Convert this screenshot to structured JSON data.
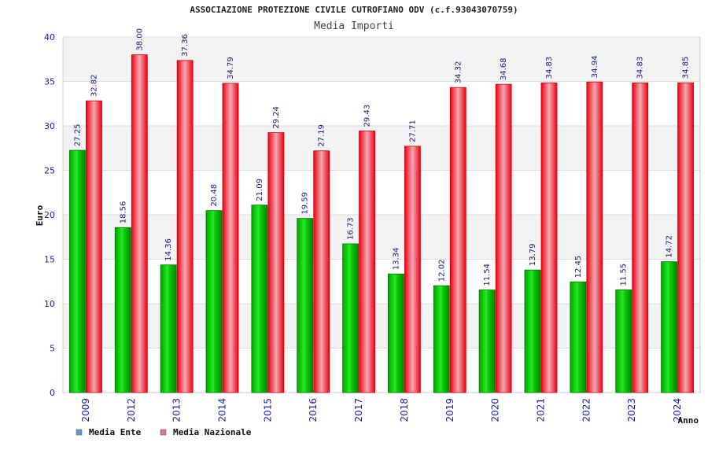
{
  "chart_data": {
    "type": "bar",
    "title": "ASSOCIAZIONE PROTEZIONE CIVILE CUTROFIANO ODV (c.f.93043070759)",
    "subtitle": "Media Importi",
    "xlabel": "Anno",
    "ylabel": "Euro",
    "ylim": [
      0,
      40
    ],
    "yticks": [
      0,
      5,
      10,
      15,
      20,
      25,
      30,
      35,
      40
    ],
    "grid": true,
    "legend_position": "bottom-left",
    "categories": [
      "2009",
      "2012",
      "2013",
      "2014",
      "2015",
      "2016",
      "2017",
      "2018",
      "2019",
      "2020",
      "2021",
      "2022",
      "2023",
      "2024"
    ],
    "series": [
      {
        "name": "Media Ente",
        "color": "#00aa00",
        "legend_color": "#5b9bd5",
        "values": [
          27.25,
          18.56,
          14.36,
          20.48,
          21.09,
          19.59,
          16.73,
          13.34,
          12.02,
          11.54,
          13.79,
          12.45,
          11.55,
          14.72
        ],
        "labels": [
          "27.25",
          "18.56",
          "14.36",
          "20.48",
          "21.09",
          "19.59",
          "16.73",
          "13.34",
          "12.02",
          "11.54",
          "13.79",
          "12.45",
          "11.55",
          "14.72"
        ]
      },
      {
        "name": "Media Nazionale",
        "color": "#ee1122",
        "legend_color": "#d9789a",
        "values": [
          32.82,
          38.0,
          37.36,
          34.79,
          29.24,
          27.19,
          29.43,
          27.71,
          34.32,
          34.68,
          34.83,
          34.94,
          34.83,
          34.85
        ],
        "labels": [
          "32.82",
          "38.00",
          "37.36",
          "34.79",
          "29.24",
          "27.19",
          "29.43",
          "27.71",
          "34.32",
          "34.68",
          "34.83",
          "34.94",
          "34.83",
          "34.85"
        ]
      }
    ]
  }
}
